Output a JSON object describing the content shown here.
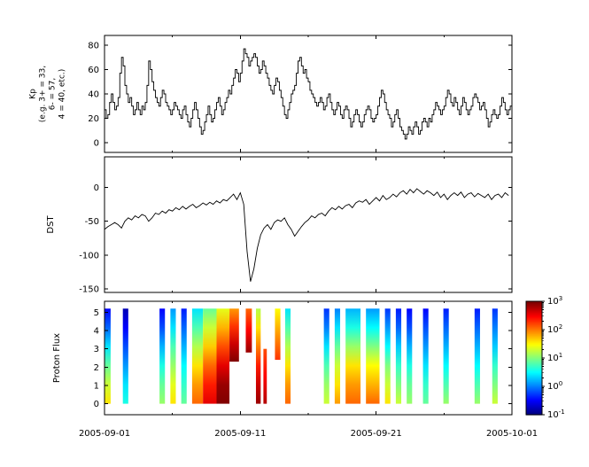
{
  "figure": {
    "background": "#ffffff",
    "axis_color": "#000000",
    "line_color": "#000000"
  },
  "x_axis": {
    "tick_labels": [
      "2005-09-01",
      "2005-09-11",
      "2005-09-21",
      "2005-10-01"
    ],
    "tick_days": [
      0,
      10,
      20,
      30
    ],
    "minor_tick_days": [
      5,
      15,
      25
    ],
    "range_days": [
      0,
      30
    ]
  },
  "chart_data": [
    {
      "type": "line",
      "name": "kp",
      "ylabel_lines": [
        "Kp",
        "(e.g. 3+ = 33,",
        "6- = 57,",
        "4 = 40, etc.)"
      ],
      "step": true,
      "ylim": [
        -8,
        88
      ],
      "yticks": [
        0,
        20,
        40,
        60,
        80
      ],
      "x_start_day": 0,
      "x_step_days": 0.125,
      "values": [
        27,
        20,
        23,
        33,
        40,
        33,
        27,
        30,
        37,
        57,
        70,
        63,
        47,
        40,
        33,
        37,
        30,
        23,
        27,
        33,
        27,
        23,
        30,
        27,
        33,
        47,
        67,
        60,
        50,
        43,
        37,
        33,
        30,
        37,
        43,
        40,
        33,
        30,
        27,
        23,
        27,
        33,
        30,
        27,
        23,
        20,
        27,
        30,
        23,
        17,
        13,
        20,
        27,
        33,
        27,
        20,
        13,
        7,
        10,
        17,
        23,
        30,
        23,
        17,
        20,
        27,
        33,
        37,
        30,
        23,
        27,
        33,
        37,
        43,
        40,
        47,
        53,
        60,
        57,
        50,
        57,
        67,
        77,
        73,
        70,
        63,
        67,
        70,
        73,
        70,
        63,
        57,
        60,
        67,
        63,
        57,
        53,
        47,
        43,
        40,
        47,
        53,
        50,
        43,
        37,
        30,
        23,
        20,
        27,
        33,
        40,
        43,
        47,
        57,
        67,
        70,
        63,
        57,
        60,
        53,
        50,
        43,
        40,
        37,
        33,
        30,
        33,
        37,
        33,
        27,
        30,
        37,
        40,
        33,
        27,
        23,
        27,
        33,
        30,
        23,
        20,
        27,
        30,
        27,
        20,
        13,
        17,
        23,
        27,
        23,
        17,
        13,
        17,
        23,
        27,
        30,
        27,
        20,
        17,
        20,
        23,
        30,
        37,
        43,
        40,
        33,
        27,
        23,
        20,
        13,
        17,
        23,
        27,
        20,
        13,
        10,
        7,
        3,
        7,
        13,
        10,
        7,
        13,
        17,
        13,
        7,
        10,
        17,
        20,
        17,
        13,
        20,
        17,
        23,
        27,
        33,
        30,
        27,
        23,
        27,
        30,
        37,
        43,
        40,
        33,
        30,
        37,
        33,
        27,
        23,
        30,
        37,
        33,
        27,
        23,
        27,
        30,
        37,
        40,
        37,
        33,
        27,
        30,
        33,
        27,
        20,
        13,
        17,
        23,
        27,
        23,
        20,
        23,
        30,
        37,
        33,
        27,
        23,
        27,
        30
      ]
    },
    {
      "type": "line",
      "name": "dst",
      "ylabel": "DST",
      "step": false,
      "ylim": [
        -155,
        45
      ],
      "yticks": [
        0,
        -50,
        -100,
        -150
      ],
      "x_start_day": 0,
      "x_step_days": 0.25,
      "values": [
        -62,
        -58,
        -55,
        -52,
        -55,
        -60,
        -50,
        -45,
        -48,
        -42,
        -45,
        -40,
        -42,
        -50,
        -45,
        -38,
        -40,
        -35,
        -38,
        -33,
        -35,
        -30,
        -33,
        -28,
        -32,
        -28,
        -25,
        -30,
        -27,
        -23,
        -26,
        -22,
        -25,
        -20,
        -23,
        -18,
        -20,
        -15,
        -10,
        -18,
        -8,
        -25,
        -95,
        -139,
        -120,
        -90,
        -70,
        -60,
        -55,
        -62,
        -52,
        -48,
        -50,
        -45,
        -55,
        -62,
        -72,
        -65,
        -58,
        -52,
        -48,
        -42,
        -45,
        -40,
        -38,
        -42,
        -35,
        -30,
        -33,
        -28,
        -32,
        -27,
        -25,
        -30,
        -23,
        -20,
        -22,
        -18,
        -25,
        -20,
        -15,
        -20,
        -12,
        -18,
        -15,
        -10,
        -14,
        -8,
        -5,
        -10,
        -3,
        -8,
        -2,
        -6,
        -10,
        -5,
        -8,
        -12,
        -7,
        -15,
        -10,
        -18,
        -12,
        -8,
        -12,
        -7,
        -15,
        -10,
        -8,
        -14,
        -9,
        -12,
        -15,
        -10,
        -18,
        -12,
        -10,
        -15,
        -8,
        -12
      ]
    },
    {
      "type": "heatmap",
      "name": "proton_flux",
      "ylabel": "Proton Flux",
      "ylim": [
        -0.6,
        5.6
      ],
      "yticks": [
        0,
        1,
        2,
        3,
        4,
        5
      ],
      "colormap": "jet",
      "value_scale": "log10",
      "color_range_log10": [
        -1,
        3
      ],
      "colorbar_tick_exponents": [
        3,
        2,
        1,
        0,
        -1
      ],
      "columns": [
        {
          "d0": 0.0,
          "d1": 0.45,
          "logflux": [
            1.6,
            1.3,
            0.9,
            0.4,
            -0.1,
            -0.5
          ]
        },
        {
          "d0": 1.35,
          "d1": 1.75,
          "logflux": [
            0.6,
            0.4,
            0.1,
            -0.2,
            -0.5,
            -0.8
          ]
        },
        {
          "d0": 4.05,
          "d1": 4.45,
          "logflux": [
            1.1,
            0.9,
            0.6,
            0.2,
            -0.2,
            -0.5
          ]
        },
        {
          "d0": 4.85,
          "d1": 5.25,
          "logflux": [
            1.6,
            1.4,
            1.1,
            0.8,
            0.4,
            0.1
          ]
        },
        {
          "d0": 5.65,
          "d1": 6.05,
          "logflux": [
            0.9,
            0.7,
            0.5,
            0.2,
            -0.1,
            -0.4
          ]
        },
        {
          "d0": 6.45,
          "d1": 7.25,
          "logflux": [
            2.1,
            1.9,
            1.6,
            1.2,
            0.8,
            0.4
          ]
        },
        {
          "d0": 7.25,
          "d1": 8.25,
          "logflux": [
            2.6,
            2.4,
            2.1,
            1.7,
            1.3,
            0.9
          ]
        },
        {
          "d0": 8.25,
          "d1": 9.2,
          "logflux": [
            3.0,
            2.9,
            2.6,
            2.2,
            1.8,
            1.4
          ]
        },
        {
          "d0": 9.2,
          "d1": 9.9,
          "y0": 2.3,
          "y1": 5.2,
          "logflux": [
            3.0,
            2.7,
            2.3,
            1.9
          ]
        },
        {
          "d0": 10.4,
          "d1": 10.85,
          "y0": 2.8,
          "y1": 5.2,
          "logflux": [
            2.9,
            2.5,
            2.1
          ]
        },
        {
          "d0": 11.15,
          "d1": 11.5,
          "logflux": [
            2.9,
            2.7,
            2.4,
            2.0,
            1.6,
            1.2
          ]
        },
        {
          "d0": 11.7,
          "d1": 11.95,
          "y0": 0,
          "y1": 3.0,
          "logflux": [
            2.8,
            2.5,
            2.2
          ]
        },
        {
          "d0": 12.55,
          "d1": 12.95,
          "y0": 2.4,
          "y1": 5.2,
          "logflux": [
            2.3,
            1.9,
            1.5
          ]
        },
        {
          "d0": 13.3,
          "d1": 13.7,
          "logflux": [
            2.1,
            1.9,
            1.6,
            1.2,
            0.8,
            0.4
          ]
        },
        {
          "d0": 16.15,
          "d1": 16.55,
          "logflux": [
            1.3,
            1.1,
            0.8,
            0.4,
            0.0,
            -0.3
          ]
        },
        {
          "d0": 16.95,
          "d1": 17.35,
          "logflux": [
            1.9,
            1.6,
            1.3,
            0.9,
            0.4,
            0.0
          ]
        },
        {
          "d0": 17.75,
          "d1": 18.85,
          "logflux": [
            2.1,
            1.9,
            1.6,
            1.1,
            0.6,
            0.2
          ]
        },
        {
          "d0": 19.25,
          "d1": 20.25,
          "logflux": [
            2.1,
            1.8,
            1.5,
            1.0,
            0.5,
            0.1
          ]
        },
        {
          "d0": 20.65,
          "d1": 21.05,
          "logflux": [
            1.6,
            1.3,
            1.0,
            0.5,
            0.1,
            -0.3
          ]
        },
        {
          "d0": 21.45,
          "d1": 21.85,
          "logflux": [
            1.3,
            1.0,
            0.7,
            0.3,
            -0.1,
            -0.4
          ]
        },
        {
          "d0": 22.25,
          "d1": 22.65,
          "logflux": [
            1.1,
            0.9,
            0.6,
            0.2,
            -0.2,
            -0.5
          ]
        },
        {
          "d0": 23.45,
          "d1": 23.85,
          "logflux": [
            0.9,
            0.7,
            0.4,
            0.1,
            -0.2,
            -0.5
          ]
        },
        {
          "d0": 24.95,
          "d1": 25.35,
          "logflux": [
            1.1,
            0.8,
            0.5,
            0.2,
            -0.1,
            -0.4
          ]
        },
        {
          "d0": 27.25,
          "d1": 27.65,
          "logflux": [
            1.1,
            0.8,
            0.5,
            0.2,
            -0.1,
            -0.4
          ]
        },
        {
          "d0": 28.55,
          "d1": 28.95,
          "logflux": [
            1.3,
            1.0,
            0.7,
            0.3,
            0.0,
            -0.3
          ]
        }
      ]
    }
  ]
}
